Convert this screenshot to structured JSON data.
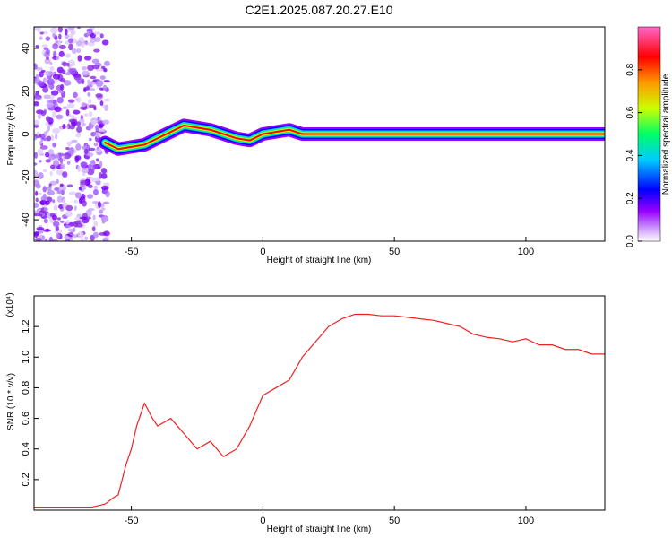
{
  "title": "C2E1.2025.087.20.27.E10",
  "chart_data": [
    {
      "type": "heatmap",
      "title": "C2E1.2025.087.20.27.E10",
      "xlabel": "Height of straight line (km)",
      "ylabel": "Frequency (Hz)",
      "xlim": [
        -87,
        130
      ],
      "ylim": [
        -50,
        50
      ],
      "x_ticks": [
        -50,
        0,
        50,
        100
      ],
      "y_ticks": [
        -40,
        -20,
        0,
        20,
        40
      ],
      "grid": false,
      "colorbar": {
        "label": "Normalized spectral amplitude",
        "range": [
          0,
          1
        ],
        "ticks": [
          0.0,
          0.2,
          0.4,
          0.6,
          0.8
        ],
        "tick_labels": [
          "0.0",
          "0.2",
          "0.4",
          "0.6",
          "0.8"
        ],
        "colormap": [
          "#ffffff",
          "#cc99ff",
          "#9900ff",
          "#0000ff",
          "#00ccff",
          "#00ff66",
          "#ccff00",
          "#ff9900",
          "#ff0000",
          "#ff66cc"
        ]
      },
      "ridge": [
        {
          "x": -60,
          "y": -4
        },
        {
          "x": -55,
          "y": -7
        },
        {
          "x": -50,
          "y": -6
        },
        {
          "x": -45,
          "y": -5
        },
        {
          "x": -40,
          "y": -2
        },
        {
          "x": -35,
          "y": 1
        },
        {
          "x": -30,
          "y": 4
        },
        {
          "x": -25,
          "y": 3
        },
        {
          "x": -20,
          "y": 2
        },
        {
          "x": -15,
          "y": 0
        },
        {
          "x": -10,
          "y": -2
        },
        {
          "x": -5,
          "y": -3
        },
        {
          "x": 0,
          "y": 0
        },
        {
          "x": 5,
          "y": 1
        },
        {
          "x": 10,
          "y": 2
        },
        {
          "x": 15,
          "y": 0
        },
        {
          "x": 130,
          "y": 0
        }
      ]
    },
    {
      "type": "line",
      "xlabel": "Height of straight line (km)",
      "ylabel": "SNR (10 * v/v)",
      "y_multiplier": "(x10⁴)",
      "xlim": [
        -87,
        130
      ],
      "ylim": [
        0,
        1.4
      ],
      "x_ticks": [
        -50,
        0,
        50,
        100
      ],
      "y_ticks": [
        0.2,
        0.4,
        0.6,
        0.8,
        1.0,
        1.2
      ],
      "y_tick_labels": [
        "0.2",
        "0.4",
        "0.6",
        "0.8",
        "1.0",
        "1.2"
      ],
      "grid": false,
      "line_color": "#ee2222",
      "series": [
        {
          "x": [
            -87,
            -75,
            -65,
            -60,
            -57,
            -55,
            -52,
            -50,
            -48,
            -45,
            -42,
            -40,
            -35,
            -30,
            -25,
            -20,
            -15,
            -10,
            -5,
            0,
            5,
            10,
            15,
            20,
            25,
            30,
            35,
            40,
            45,
            50,
            55,
            60,
            65,
            70,
            75,
            80,
            85,
            90,
            95,
            100,
            105,
            110,
            115,
            120,
            125,
            130
          ],
          "y": [
            0.02,
            0.02,
            0.02,
            0.04,
            0.08,
            0.1,
            0.3,
            0.4,
            0.55,
            0.7,
            0.6,
            0.55,
            0.6,
            0.5,
            0.4,
            0.45,
            0.35,
            0.4,
            0.55,
            0.75,
            0.8,
            0.85,
            1.0,
            1.1,
            1.2,
            1.25,
            1.28,
            1.28,
            1.27,
            1.27,
            1.26,
            1.25,
            1.24,
            1.22,
            1.2,
            1.15,
            1.13,
            1.12,
            1.1,
            1.12,
            1.08,
            1.08,
            1.05,
            1.05,
            1.02,
            1.02
          ]
        }
      ]
    }
  ]
}
